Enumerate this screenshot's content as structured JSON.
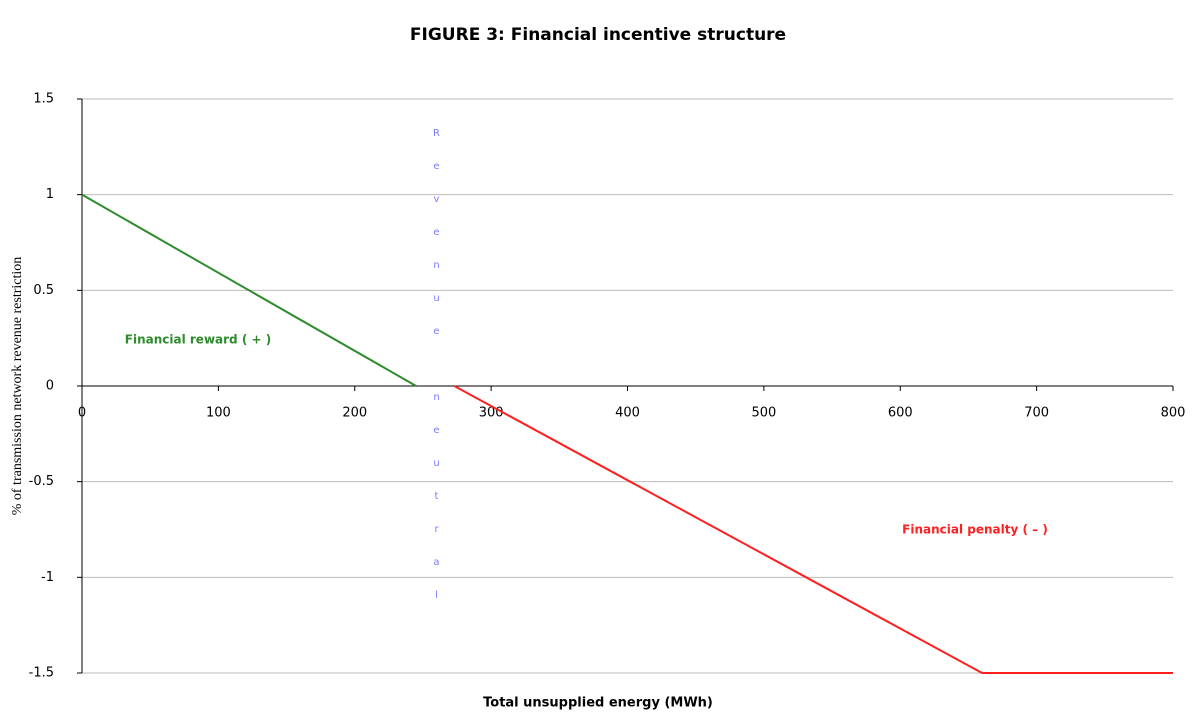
{
  "chart_data": {
    "type": "line",
    "title": "FIGURE 3: Financial incentive structure",
    "x_label": "Total unsupplied energy (MWh)",
    "y_label": "% of transmission network revenue restriction",
    "annotations": [
      "Financial reward ( + )",
      "Financial penalty ( – )",
      "Revenue neutral"
    ],
    "series": [
      {
        "color": "#2e8b2e",
        "x": [
          0,
          245
        ],
        "values": [
          1,
          0
        ]
      },
      {
        "color": "#ff2020",
        "x": [
          273,
          660,
          800
        ],
        "values": [
          0,
          -1.5,
          -1.5
        ]
      }
    ],
    "xlim": [
      0,
      800
    ],
    "xticks": [
      0,
      100,
      200,
      300,
      400,
      500,
      600,
      700,
      800
    ],
    "ylim": [
      -1.5,
      1.5
    ],
    "yticks": [
      -1.5,
      -1,
      -0.5,
      0,
      0.5,
      1,
      1.5
    ],
    "grid": true
  }
}
